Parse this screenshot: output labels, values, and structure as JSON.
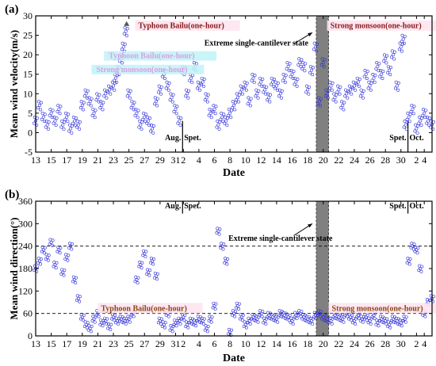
{
  "chart_data": [
    {
      "panel": "(a)",
      "type": "scatter",
      "xlabel": "Date",
      "ylabel": "Mean wind velocity(m/s)",
      "ylim": [
        -5,
        30
      ],
      "yticks": [
        -5,
        0,
        5,
        10,
        15,
        20,
        25,
        30
      ],
      "x_tick_labels": [
        "13",
        "15",
        "17",
        "19",
        "21",
        "23",
        "25",
        "27",
        "29",
        "31",
        "2",
        "4",
        "6",
        "8",
        "10",
        "12",
        "14",
        "16",
        "18",
        "20",
        "22",
        "24",
        "26",
        "28",
        "30",
        "2",
        "4"
      ],
      "month_labels": [
        {
          "text": "Aug.",
          "pos": 31.5,
          "y": -1.5
        },
        {
          "text": "Spet.",
          "pos": 32.3,
          "y": -1.5
        },
        {
          "text": "Spet.",
          "pos": 60.5,
          "y": -1.5
        },
        {
          "text": "Oct.",
          "pos": 61.3,
          "y": -1.5
        }
      ],
      "month_dividers": [
        31.9,
        60.9
      ],
      "shaded_band": {
        "x": [
          49.1,
          50.7
        ],
        "color": "#808080"
      },
      "annotations": [
        {
          "text": "Typhoon Bailu(one-hour)",
          "x": 26.2,
          "y": 26.8,
          "color": "#8b1a1a"
        },
        {
          "text": "Strong monsoon(one-hour)",
          "x": 50.9,
          "y": 26.8,
          "color": "#8b1a1a"
        },
        {
          "text": "Extreme single-cantilever state",
          "x": 34.7,
          "y": 22.4,
          "color": "#000000"
        }
      ],
      "blurred_labels": [
        {
          "text": "Typhoon Bailu(one-hour)",
          "x": 22.4,
          "y": 19.3
        },
        {
          "text": "Strong monsoon(one-hour)",
          "x": 20.8,
          "y": 15.8
        }
      ],
      "arrow": {
        "from": [
          46.2,
          22.8
        ],
        "to": [
          48.6,
          25.7
        ]
      },
      "peak_marker": {
        "x": 24.7,
        "y": 27.8
      },
      "series": [
        {
          "x": [
            13,
            13.5,
            14,
            14.5,
            15,
            15.5,
            16,
            16.5,
            17,
            17.5,
            18,
            18.5,
            19,
            19.5,
            20,
            20.5,
            21,
            21.5,
            22,
            22.5,
            23,
            23.3,
            23.6,
            24,
            24.3,
            24.6,
            25,
            25.5,
            26,
            26.5,
            27,
            27.5,
            28,
            28.5,
            29,
            29.5,
            30,
            30.5,
            31,
            31.5,
            32,
            32.5,
            33,
            33.5,
            34,
            34.5,
            35,
            35.5,
            36,
            36.5,
            37,
            37.5,
            38,
            38.5,
            39,
            39.5,
            40,
            40.5,
            41,
            41.5,
            42,
            42.5,
            43,
            43.5,
            44,
            44.5,
            45,
            45.5,
            46,
            46.5,
            47,
            47.5,
            48,
            48.5,
            49,
            49.5,
            50,
            50.5,
            51,
            51.5,
            52,
            52.5,
            53,
            53.5,
            54,
            54.5,
            55,
            55.5,
            56,
            56.5,
            57,
            57.5,
            58,
            58.5,
            59,
            59.5,
            60,
            60.3,
            60.6,
            61,
            61.5,
            62,
            62.5,
            63,
            63.5,
            64
          ],
          "y": [
            3,
            7,
            4,
            2,
            5,
            3,
            6,
            2,
            4,
            1,
            3,
            2,
            7,
            10,
            8,
            5,
            9,
            7,
            10,
            11,
            12,
            14,
            16,
            19,
            22,
            26,
            10,
            7,
            5,
            2,
            4,
            3,
            1,
            8,
            11,
            15,
            12,
            9,
            6,
            3,
            16,
            10,
            14,
            17,
            12,
            13,
            9,
            5,
            6,
            2,
            4,
            3,
            5,
            7,
            9,
            11,
            12,
            8,
            14,
            10,
            13,
            11,
            9,
            13,
            12,
            10,
            14,
            17,
            15,
            13,
            18,
            17,
            11,
            16,
            22,
            8,
            18,
            10,
            12,
            9,
            11,
            7,
            10,
            11,
            12,
            13,
            10,
            15,
            12,
            14,
            17,
            15,
            19,
            16,
            20,
            12,
            22,
            24,
            2,
            4,
            6,
            1,
            3,
            5,
            3,
            2
          ]
        }
      ]
    },
    {
      "panel": "(b)",
      "type": "scatter",
      "xlabel": "Date",
      "ylabel": "Mean wind direction(°)",
      "ylim": [
        0,
        360
      ],
      "yticks": [
        0,
        60,
        120,
        180,
        240,
        300,
        360
      ],
      "x_tick_labels": [
        "13",
        "15",
        "17",
        "19",
        "21",
        "23",
        "25",
        "27",
        "29",
        "31",
        "2",
        "4",
        "6",
        "8",
        "10",
        "12",
        "14",
        "16",
        "18",
        "20",
        "22",
        "24",
        "26",
        "28",
        "30",
        "2",
        "4"
      ],
      "month_labels": [
        {
          "text": "Aug.",
          "pos": 31.5,
          "y": 333
        },
        {
          "text": "Spet.",
          "pos": 32.3,
          "y": 333
        },
        {
          "text": "Spet.",
          "pos": 60.5,
          "y": 333
        },
        {
          "text": "Oct.",
          "pos": 61.3,
          "y": 333
        }
      ],
      "month_dividers": [
        31.9,
        60.9
      ],
      "reference_lines": [
        60,
        240
      ],
      "shaded_band": {
        "x": [
          49.1,
          50.7
        ],
        "color": "#808080"
      },
      "annotations": [
        {
          "text": "Typhoon Bailu(one-hour)",
          "x": 21.4,
          "y": 67,
          "color": "#8b4513"
        },
        {
          "text": "Strong monsoon(one-hour)",
          "x": 51.1,
          "y": 67,
          "color": "#8b4513"
        },
        {
          "text": "Extreme single-cantilever state",
          "x": 37.8,
          "y": 254,
          "color": "#000000"
        }
      ],
      "arrow": {
        "from": [
          46.2,
          268
        ],
        "to": [
          48.6,
          300
        ]
      },
      "series": [
        {
          "x": [
            13,
            13.5,
            14,
            14.5,
            15,
            15.5,
            16,
            16.5,
            17,
            17.5,
            18,
            18.5,
            19,
            19.5,
            20,
            20.5,
            21,
            21.5,
            22,
            22.5,
            23,
            23.5,
            24,
            24.5,
            25,
            25.5,
            26,
            26.5,
            27,
            27.5,
            28,
            28.5,
            29,
            29.5,
            30,
            30.5,
            31,
            31.5,
            32,
            32.5,
            33,
            33.5,
            34,
            34.5,
            35,
            35.5,
            36,
            36.5,
            37,
            37.5,
            38,
            38.5,
            39,
            39.5,
            40,
            40.5,
            41,
            41.5,
            42,
            42.5,
            43,
            43.5,
            44,
            44.5,
            45,
            45.5,
            46,
            46.5,
            47,
            47.5,
            48,
            48.5,
            49,
            49.5,
            50,
            50.5,
            51,
            51.5,
            52,
            52.5,
            53,
            53.5,
            54,
            54.5,
            55,
            55.5,
            56,
            56.5,
            57,
            57.5,
            58,
            58.5,
            59,
            59.5,
            60,
            60.5,
            61,
            61.5,
            62,
            62.5,
            63,
            63.5,
            64
          ],
          "y": [
            180,
            200,
            230,
            210,
            250,
            190,
            230,
            170,
            210,
            240,
            150,
            100,
            50,
            30,
            20,
            45,
            60,
            35,
            40,
            25,
            50,
            40,
            45,
            40,
            45,
            60,
            150,
            190,
            220,
            170,
            200,
            160,
            40,
            30,
            60,
            20,
            35,
            40,
            50,
            30,
            40,
            35,
            45,
            40,
            20,
            45,
            80,
            280,
            240,
            200,
            10,
            60,
            80,
            50,
            30,
            40,
            50,
            45,
            60,
            40,
            55,
            50,
            45,
            60,
            55,
            50,
            40,
            55,
            60,
            50,
            45,
            40,
            55,
            60,
            50,
            45,
            40,
            55,
            50,
            45,
            60,
            50,
            40,
            55,
            45,
            50,
            40,
            55,
            35,
            45,
            40,
            30,
            45,
            40,
            35,
            45,
            200,
            240,
            230,
            180,
            60,
            90,
            100
          ]
        }
      ]
    }
  ]
}
